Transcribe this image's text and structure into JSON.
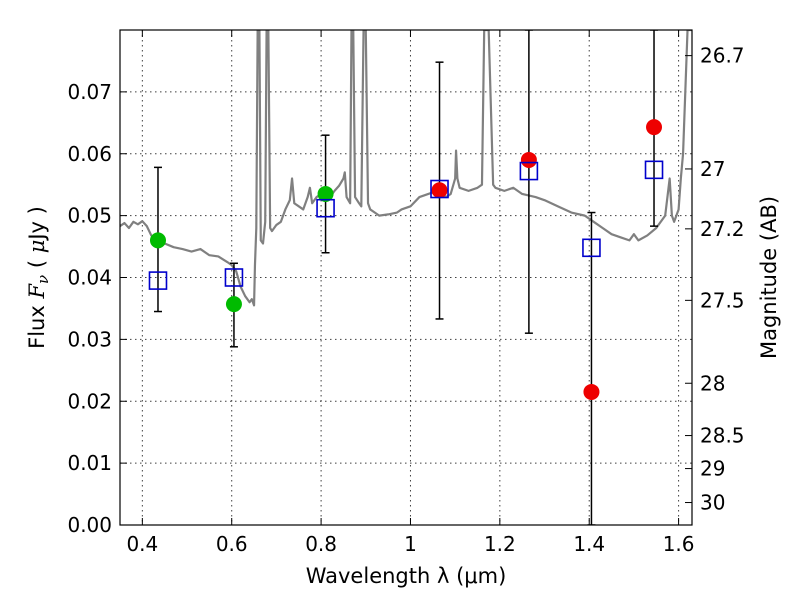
{
  "chart_data": {
    "type": "scatter",
    "xlabel": "Wavelength  λ (μm)",
    "ylabel": "Flux  F_ν  ( μJy )",
    "ylabel_parts": {
      "prefix": "Flux  ",
      "var": "F",
      "sub": "ν",
      "mid": "  ( ",
      "mu": "μ",
      "suffix": "Jy )"
    },
    "y2label": "Magnitude (AB)",
    "xlim": [
      0.35,
      1.63
    ],
    "ylim": [
      0.0,
      0.08
    ],
    "xticks": [
      {
        "v": 0.4,
        "label": "0.4"
      },
      {
        "v": 0.6,
        "label": "0.6"
      },
      {
        "v": 0.8,
        "label": "0.8"
      },
      {
        "v": 1.0,
        "label": "1"
      },
      {
        "v": 1.2,
        "label": "1.2"
      },
      {
        "v": 1.4,
        "label": "1.4"
      },
      {
        "v": 1.6,
        "label": "1.6"
      }
    ],
    "yticks": [
      {
        "v": 0.0,
        "label": "0.00"
      },
      {
        "v": 0.01,
        "label": "0.01"
      },
      {
        "v": 0.02,
        "label": "0.02"
      },
      {
        "v": 0.03,
        "label": "0.03"
      },
      {
        "v": 0.04,
        "label": "0.04"
      },
      {
        "v": 0.05,
        "label": "0.05"
      },
      {
        "v": 0.06,
        "label": "0.06"
      },
      {
        "v": 0.07,
        "label": "0.07"
      }
    ],
    "y2ticks": [
      {
        "mag": 26.7,
        "label": "26.7"
      },
      {
        "mag": 27.0,
        "label": "27"
      },
      {
        "mag": 27.2,
        "label": "27.2"
      },
      {
        "mag": 27.5,
        "label": "27.5"
      },
      {
        "mag": 28.0,
        "label": "28"
      },
      {
        "mag": 28.5,
        "label": "28.5"
      },
      {
        "mag": 29.0,
        "label": "29"
      },
      {
        "mag": 30.0,
        "label": "30"
      }
    ],
    "grid": true,
    "model_spectrum": {
      "color": "#808080",
      "points": [
        [
          0.35,
          0.0483
        ],
        [
          0.36,
          0.0488
        ],
        [
          0.37,
          0.048
        ],
        [
          0.38,
          0.049
        ],
        [
          0.39,
          0.0486
        ],
        [
          0.4,
          0.0491
        ],
        [
          0.41,
          0.0483
        ],
        [
          0.42,
          0.0468
        ],
        [
          0.43,
          0.0463
        ],
        [
          0.44,
          0.0458
        ],
        [
          0.45,
          0.0455
        ],
        [
          0.47,
          0.0449
        ],
        [
          0.49,
          0.0446
        ],
        [
          0.51,
          0.0442
        ],
        [
          0.53,
          0.0446
        ],
        [
          0.55,
          0.0436
        ],
        [
          0.57,
          0.0434
        ],
        [
          0.59,
          0.0425
        ],
        [
          0.6,
          0.042
        ],
        [
          0.61,
          0.041
        ],
        [
          0.62,
          0.0385
        ],
        [
          0.63,
          0.037
        ],
        [
          0.64,
          0.036
        ],
        [
          0.645,
          0.0365
        ],
        [
          0.65,
          0.0355
        ],
        [
          0.652,
          0.042
        ],
        [
          0.655,
          0.048
        ],
        [
          0.658,
          0.08
        ],
        [
          0.662,
          0.08
        ],
        [
          0.665,
          0.046
        ],
        [
          0.67,
          0.0455
        ],
        [
          0.675,
          0.049
        ],
        [
          0.678,
          0.08
        ],
        [
          0.682,
          0.08
        ],
        [
          0.686,
          0.048
        ],
        [
          0.69,
          0.0475
        ],
        [
          0.7,
          0.0485
        ],
        [
          0.71,
          0.049
        ],
        [
          0.72,
          0.051
        ],
        [
          0.73,
          0.0525
        ],
        [
          0.735,
          0.056
        ],
        [
          0.74,
          0.052
        ],
        [
          0.75,
          0.0515
        ],
        [
          0.76,
          0.051
        ],
        [
          0.77,
          0.053
        ],
        [
          0.775,
          0.0545
        ],
        [
          0.78,
          0.052
        ],
        [
          0.79,
          0.053
        ],
        [
          0.8,
          0.0535
        ],
        [
          0.81,
          0.0525
        ],
        [
          0.82,
          0.053
        ],
        [
          0.83,
          0.054
        ],
        [
          0.84,
          0.0548
        ],
        [
          0.85,
          0.056
        ],
        [
          0.853,
          0.057
        ],
        [
          0.857,
          0.053
        ],
        [
          0.865,
          0.052
        ],
        [
          0.868,
          0.08
        ],
        [
          0.872,
          0.08
        ],
        [
          0.876,
          0.053
        ],
        [
          0.885,
          0.052
        ],
        [
          0.89,
          0.0515
        ],
        [
          0.895,
          0.08
        ],
        [
          0.9,
          0.08
        ],
        [
          0.905,
          0.052
        ],
        [
          0.91,
          0.051
        ],
        [
          0.92,
          0.0505
        ],
        [
          0.93,
          0.05
        ],
        [
          0.95,
          0.0502
        ],
        [
          0.97,
          0.0505
        ],
        [
          0.98,
          0.051
        ],
        [
          1.0,
          0.0515
        ],
        [
          1.02,
          0.053
        ],
        [
          1.04,
          0.0535
        ],
        [
          1.06,
          0.054
        ],
        [
          1.08,
          0.053
        ],
        [
          1.09,
          0.0535
        ],
        [
          1.1,
          0.056
        ],
        [
          1.102,
          0.0605
        ],
        [
          1.105,
          0.056
        ],
        [
          1.11,
          0.0545
        ],
        [
          1.13,
          0.054
        ],
        [
          1.15,
          0.0545
        ],
        [
          1.16,
          0.055
        ],
        [
          1.165,
          0.08
        ],
        [
          1.175,
          0.08
        ],
        [
          1.185,
          0.055
        ],
        [
          1.19,
          0.0545
        ],
        [
          1.21,
          0.054
        ],
        [
          1.23,
          0.0545
        ],
        [
          1.25,
          0.0535
        ],
        [
          1.28,
          0.053
        ],
        [
          1.3,
          0.0525
        ],
        [
          1.33,
          0.0515
        ],
        [
          1.36,
          0.0505
        ],
        [
          1.39,
          0.05
        ],
        [
          1.41,
          0.049
        ],
        [
          1.43,
          0.048
        ],
        [
          1.45,
          0.047
        ],
        [
          1.47,
          0.0465
        ],
        [
          1.49,
          0.046
        ],
        [
          1.5,
          0.047
        ],
        [
          1.51,
          0.046
        ],
        [
          1.53,
          0.0468
        ],
        [
          1.55,
          0.048
        ],
        [
          1.57,
          0.05
        ],
        [
          1.58,
          0.056
        ],
        [
          1.585,
          0.05
        ],
        [
          1.59,
          0.049
        ],
        [
          1.6,
          0.051
        ],
        [
          1.605,
          0.056
        ],
        [
          1.61,
          0.06
        ],
        [
          1.615,
          0.07
        ],
        [
          1.62,
          0.08
        ],
        [
          1.63,
          0.08
        ]
      ]
    },
    "model_points": {
      "color": "#0000cc",
      "marker": "open-square",
      "x": [
        0.435,
        0.605,
        0.81,
        1.065,
        1.265,
        1.405,
        1.545
      ],
      "y": [
        0.0395,
        0.04,
        0.0512,
        0.0543,
        0.0572,
        0.0448,
        0.0574
      ]
    },
    "observed": [
      {
        "x": 0.435,
        "y": 0.046,
        "err_low": 0.0345,
        "err_high": 0.0578,
        "color": "#00bb00"
      },
      {
        "x": 0.605,
        "y": 0.0357,
        "err_low": 0.0288,
        "err_high": 0.0423,
        "color": "#00bb00"
      },
      {
        "x": 0.81,
        "y": 0.0535,
        "err_low": 0.044,
        "err_high": 0.063,
        "color": "#00bb00"
      },
      {
        "x": 1.065,
        "y": 0.0541,
        "err_low": 0.0333,
        "err_high": 0.0748,
        "color": "#ee0000"
      },
      {
        "x": 1.265,
        "y": 0.059,
        "err_low": 0.031,
        "err_high": 0.08,
        "color": "#ee0000"
      },
      {
        "x": 1.405,
        "y": 0.0215,
        "err_low": 0.0,
        "err_high": 0.0505,
        "color": "#ee0000"
      },
      {
        "x": 1.545,
        "y": 0.0643,
        "err_low": 0.0483,
        "err_high": 0.08,
        "color": "#ee0000"
      }
    ],
    "errorbar_color": "#000000"
  }
}
